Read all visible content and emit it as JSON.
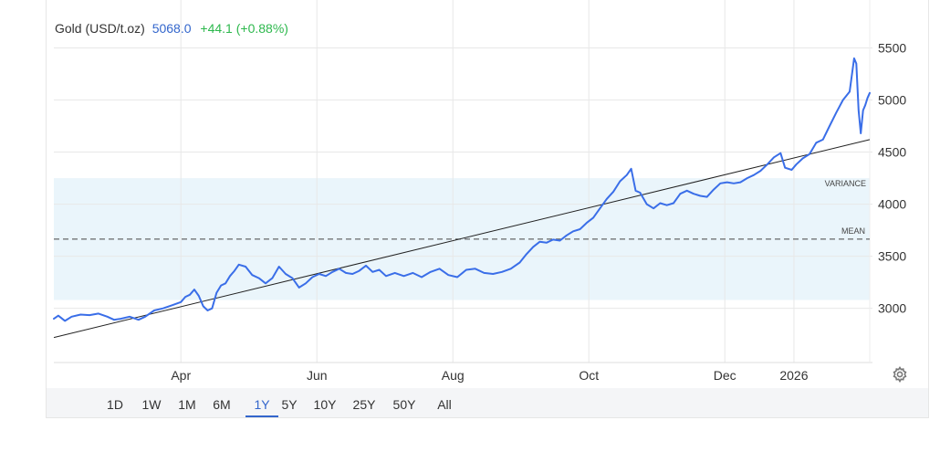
{
  "header": {
    "name": "Gold (USD/t.oz)",
    "price": "5068.0",
    "change": "+44.1 (+0.88%)"
  },
  "colors": {
    "line": "#3a6ee8",
    "band": "#eaf5fb",
    "trend": "#222222",
    "grid": "#e8e8e8",
    "accent": "#3366cc",
    "positive": "#2db84d"
  },
  "ranges": {
    "items": [
      "1D",
      "1W",
      "1M",
      "6M",
      "1Y",
      "5Y",
      "10Y",
      "25Y",
      "50Y",
      "All"
    ],
    "active": "1Y"
  },
  "settings_icon": "gear-icon",
  "chart_data": {
    "type": "line",
    "title": "",
    "xlabel": "",
    "ylabel": "",
    "y_ticks": [
      3000,
      3500,
      4000,
      4500,
      5000,
      5500
    ],
    "y_tick_labels": [
      "3000",
      "3500",
      "4000",
      "4500",
      "5000",
      "5500"
    ],
    "x_ticks": [
      "2025-04-01",
      "2025-06-01",
      "2025-08-01",
      "2025-10-01",
      "2025-12-01",
      "2026-01-01"
    ],
    "x_tick_labels": [
      "Apr",
      "Jun",
      "Aug",
      "Oct",
      "Dec",
      "2026"
    ],
    "xlim": [
      "2025-02-03",
      "2026-02-04"
    ],
    "ylim": [
      2480,
      5960
    ],
    "grid": true,
    "legend": "none",
    "series": [
      {
        "values": [
          [
            "2025-02-03",
            2900
          ],
          [
            "2025-02-05",
            2930
          ],
          [
            "2025-02-08",
            2880
          ],
          [
            "2025-02-11",
            2920
          ],
          [
            "2025-02-15",
            2940
          ],
          [
            "2025-02-19",
            2935
          ],
          [
            "2025-02-23",
            2950
          ],
          [
            "2025-02-27",
            2920
          ],
          [
            "2025-03-02",
            2890
          ],
          [
            "2025-03-05",
            2900
          ],
          [
            "2025-03-09",
            2920
          ],
          [
            "2025-03-13",
            2890
          ],
          [
            "2025-03-16",
            2920
          ],
          [
            "2025-03-20",
            2980
          ],
          [
            "2025-03-24",
            3000
          ],
          [
            "2025-03-28",
            3030
          ],
          [
            "2025-04-01",
            3060
          ],
          [
            "2025-04-03",
            3110
          ],
          [
            "2025-04-05",
            3130
          ],
          [
            "2025-04-07",
            3180
          ],
          [
            "2025-04-09",
            3120
          ],
          [
            "2025-04-11",
            3020
          ],
          [
            "2025-04-13",
            2980
          ],
          [
            "2025-04-15",
            3000
          ],
          [
            "2025-04-17",
            3150
          ],
          [
            "2025-04-19",
            3220
          ],
          [
            "2025-04-21",
            3240
          ],
          [
            "2025-04-23",
            3310
          ],
          [
            "2025-04-25",
            3360
          ],
          [
            "2025-04-27",
            3420
          ],
          [
            "2025-04-30",
            3400
          ],
          [
            "2025-05-03",
            3320
          ],
          [
            "2025-05-06",
            3290
          ],
          [
            "2025-05-09",
            3240
          ],
          [
            "2025-05-12",
            3290
          ],
          [
            "2025-05-15",
            3400
          ],
          [
            "2025-05-18",
            3330
          ],
          [
            "2025-05-21",
            3290
          ],
          [
            "2025-05-24",
            3200
          ],
          [
            "2025-05-27",
            3240
          ],
          [
            "2025-05-30",
            3300
          ],
          [
            "2025-06-02",
            3330
          ],
          [
            "2025-06-05",
            3310
          ],
          [
            "2025-06-08",
            3350
          ],
          [
            "2025-06-11",
            3380
          ],
          [
            "2025-06-14",
            3340
          ],
          [
            "2025-06-17",
            3330
          ],
          [
            "2025-06-20",
            3360
          ],
          [
            "2025-06-23",
            3410
          ],
          [
            "2025-06-26",
            3350
          ],
          [
            "2025-06-29",
            3370
          ],
          [
            "2025-07-02",
            3310
          ],
          [
            "2025-07-06",
            3340
          ],
          [
            "2025-07-10",
            3310
          ],
          [
            "2025-07-14",
            3340
          ],
          [
            "2025-07-18",
            3300
          ],
          [
            "2025-07-22",
            3350
          ],
          [
            "2025-07-26",
            3380
          ],
          [
            "2025-07-30",
            3320
          ],
          [
            "2025-08-03",
            3300
          ],
          [
            "2025-08-07",
            3370
          ],
          [
            "2025-08-11",
            3380
          ],
          [
            "2025-08-15",
            3340
          ],
          [
            "2025-08-19",
            3330
          ],
          [
            "2025-08-23",
            3350
          ],
          [
            "2025-08-27",
            3380
          ],
          [
            "2025-08-31",
            3440
          ],
          [
            "2025-09-03",
            3520
          ],
          [
            "2025-09-06",
            3590
          ],
          [
            "2025-09-09",
            3640
          ],
          [
            "2025-09-12",
            3630
          ],
          [
            "2025-09-15",
            3660
          ],
          [
            "2025-09-18",
            3650
          ],
          [
            "2025-09-21",
            3700
          ],
          [
            "2025-09-24",
            3740
          ],
          [
            "2025-09-27",
            3760
          ],
          [
            "2025-09-30",
            3820
          ],
          [
            "2025-10-03",
            3870
          ],
          [
            "2025-10-06",
            3960
          ],
          [
            "2025-10-09",
            4050
          ],
          [
            "2025-10-12",
            4120
          ],
          [
            "2025-10-15",
            4220
          ],
          [
            "2025-10-18",
            4280
          ],
          [
            "2025-10-20",
            4340
          ],
          [
            "2025-10-22",
            4130
          ],
          [
            "2025-10-24",
            4110
          ],
          [
            "2025-10-27",
            4000
          ],
          [
            "2025-10-30",
            3960
          ],
          [
            "2025-11-02",
            4010
          ],
          [
            "2025-11-05",
            3990
          ],
          [
            "2025-11-08",
            4010
          ],
          [
            "2025-11-11",
            4100
          ],
          [
            "2025-11-14",
            4130
          ],
          [
            "2025-11-17",
            4100
          ],
          [
            "2025-11-20",
            4080
          ],
          [
            "2025-11-23",
            4070
          ],
          [
            "2025-11-26",
            4140
          ],
          [
            "2025-11-29",
            4200
          ],
          [
            "2025-12-02",
            4210
          ],
          [
            "2025-12-05",
            4200
          ],
          [
            "2025-12-08",
            4210
          ],
          [
            "2025-12-11",
            4250
          ],
          [
            "2025-12-14",
            4280
          ],
          [
            "2025-12-17",
            4320
          ],
          [
            "2025-12-20",
            4380
          ],
          [
            "2025-12-23",
            4450
          ],
          [
            "2025-12-26",
            4490
          ],
          [
            "2025-12-28",
            4350
          ],
          [
            "2025-12-31",
            4330
          ],
          [
            "2026-01-02",
            4380
          ],
          [
            "2026-01-05",
            4440
          ],
          [
            "2026-01-08",
            4480
          ],
          [
            "2026-01-11",
            4590
          ],
          [
            "2026-01-14",
            4620
          ],
          [
            "2026-01-17",
            4750
          ],
          [
            "2026-01-20",
            4880
          ],
          [
            "2026-01-23",
            5000
          ],
          [
            "2026-01-26",
            5080
          ],
          [
            "2026-01-28",
            5400
          ],
          [
            "2026-01-29",
            5350
          ],
          [
            "2026-01-30",
            4900
          ],
          [
            "2026-01-31",
            4680
          ],
          [
            "2026-02-01",
            4900
          ],
          [
            "2026-02-02",
            4950
          ],
          [
            "2026-02-03",
            5020
          ],
          [
            "2026-02-04",
            5068
          ]
        ]
      },
      {
        "values": [
          [
            "2025-02-03",
            2720
          ],
          [
            "2026-02-04",
            4620
          ]
        ]
      }
    ],
    "bands": [
      {
        "label": "VARIANCE",
        "from": 3080,
        "to": 4250
      }
    ],
    "reference_lines": [
      {
        "label": "MEAN",
        "value": 3665,
        "style": "dashed"
      }
    ]
  }
}
